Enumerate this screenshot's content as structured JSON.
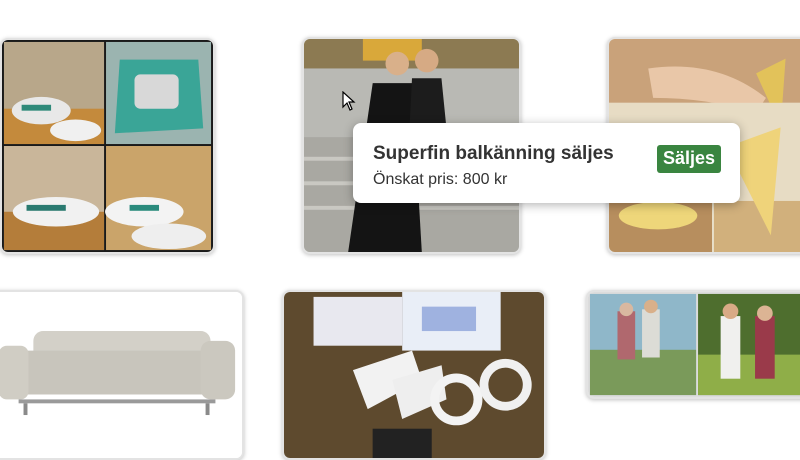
{
  "listings": [
    {
      "name": "sneakers-listing"
    },
    {
      "name": "dress-listing"
    },
    {
      "name": "sandals-listing"
    },
    {
      "name": "sofa-listing"
    },
    {
      "name": "wii-accessories-listing"
    },
    {
      "name": "couple-photo-listing"
    }
  ],
  "tooltip": {
    "title": "Superfin balkänning säljes",
    "price": "Önskat pris: 800 kr",
    "badge": "Säljes"
  },
  "colors": {
    "badge": "#3a8540",
    "tooltip_text": "#333333",
    "card_border": "#e3e3e3"
  }
}
